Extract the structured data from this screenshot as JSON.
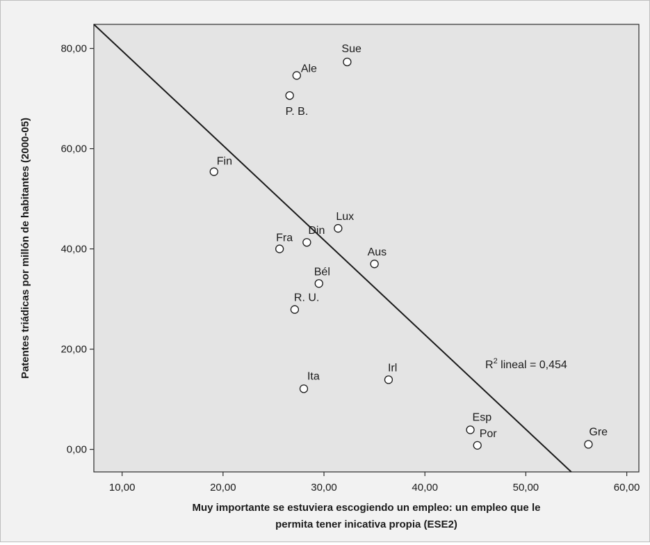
{
  "chart_data": {
    "type": "scatter",
    "title": "",
    "xlabel_lines": [
      "Muy importante se estuviera escogiendo un empleo: un empleo que le",
      "permita tener inicativa propia (ESE2)"
    ],
    "ylabel": "Patentes triádicas por millón de habitantes (2000-05)",
    "xlim": [
      7.2,
      61.2
    ],
    "ylim": [
      -4.5,
      84.8
    ],
    "x_ticks": [
      10,
      20,
      30,
      40,
      50,
      60
    ],
    "x_tick_labels": [
      "10,00",
      "20,00",
      "30,00",
      "40,00",
      "50,00",
      "60,00"
    ],
    "y_ticks": [
      0,
      20,
      40,
      60,
      80
    ],
    "y_tick_labels": [
      "0,00",
      "20,00",
      "40,00",
      "60,00",
      "80,00"
    ],
    "grid": false,
    "points": [
      {
        "label": "Sue",
        "x": 32.3,
        "y": 77.3
      },
      {
        "label": "Ale",
        "x": 27.3,
        "y": 74.6
      },
      {
        "label": "P. B.",
        "x": 26.6,
        "y": 70.6
      },
      {
        "label": "Fin",
        "x": 19.1,
        "y": 55.4
      },
      {
        "label": "Lux",
        "x": 31.4,
        "y": 44.1
      },
      {
        "label": "Din",
        "x": 28.3,
        "y": 41.3
      },
      {
        "label": "Fra",
        "x": 25.6,
        "y": 40.0
      },
      {
        "label": "Aus",
        "x": 35.0,
        "y": 37.0
      },
      {
        "label": "Bél",
        "x": 29.5,
        "y": 33.1
      },
      {
        "label": "R. U.",
        "x": 27.1,
        "y": 27.9
      },
      {
        "label": "Irl",
        "x": 36.4,
        "y": 13.9
      },
      {
        "label": "Ita",
        "x": 28.0,
        "y": 12.1
      },
      {
        "label": "Esp",
        "x": 44.5,
        "y": 3.9
      },
      {
        "label": "Por",
        "x": 45.2,
        "y": 0.8
      },
      {
        "label": "Gre",
        "x": 56.2,
        "y": 1.0
      }
    ],
    "fit_line": {
      "x1": 7.2,
      "y1": 84.8,
      "x2": 54.5,
      "y2": -4.5
    },
    "annotation": {
      "prefix": "R",
      "sup": "2",
      "suffix": " lineal = 0,454"
    }
  }
}
